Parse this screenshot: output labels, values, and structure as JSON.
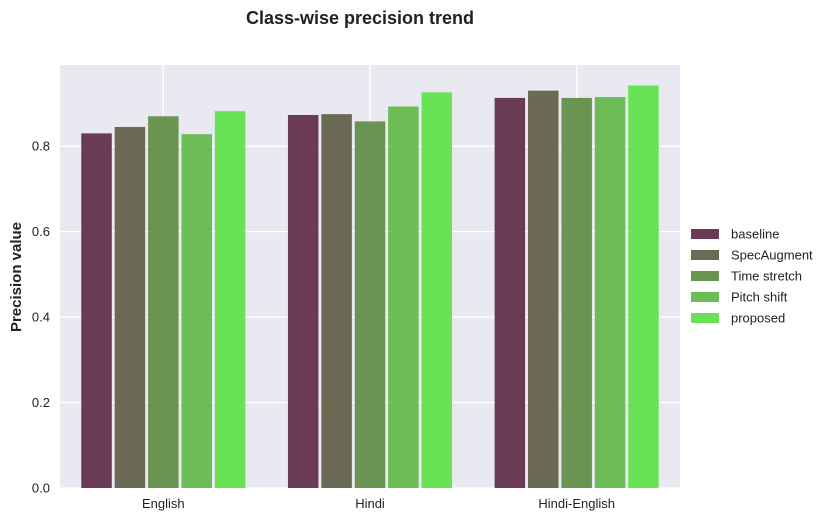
{
  "chart_data": {
    "type": "bar",
    "title": "Class-wise precision trend",
    "xlabel": "",
    "ylabel": "Precision value",
    "categories": [
      "English",
      "Hindi",
      "Hindi-English"
    ],
    "ylim": [
      0,
      0.99
    ],
    "yticks": [
      "0.0",
      "0.2",
      "0.4",
      "0.6",
      "0.8"
    ],
    "grid": true,
    "legend_position": "right",
    "series": [
      {
        "name": "baseline",
        "color": "#6b3a57",
        "values": [
          0.83,
          0.873,
          0.913
        ]
      },
      {
        "name": "SpecAugment",
        "color": "#6a6a55",
        "values": [
          0.845,
          0.875,
          0.93
        ]
      },
      {
        "name": "Time stretch",
        "color": "#6a9452",
        "values": [
          0.87,
          0.858,
          0.913
        ]
      },
      {
        "name": "Pitch shift",
        "color": "#6cbd55",
        "values": [
          0.828,
          0.893,
          0.915
        ]
      },
      {
        "name": "proposed",
        "color": "#6ae255",
        "values": [
          0.882,
          0.926,
          0.942
        ]
      }
    ],
    "background_color": "#e9e9f1",
    "grid_color": "#ffffff"
  }
}
